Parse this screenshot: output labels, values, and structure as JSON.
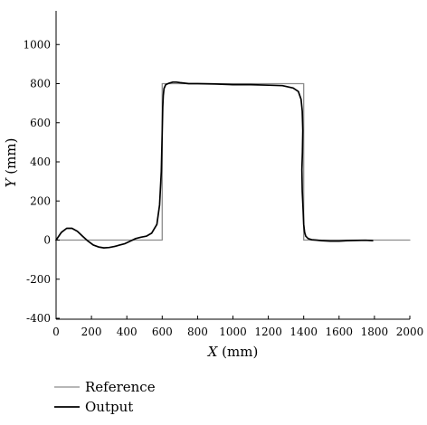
{
  "chart_data": {
    "type": "line",
    "xlabel": "X (mm)",
    "ylabel": "Y (mm)",
    "xlim": [
      0,
      2000
    ],
    "ylim": [
      -400,
      1150
    ],
    "xticks": [
      0,
      200,
      400,
      600,
      800,
      1000,
      1200,
      1400,
      1600,
      1800,
      2000
    ],
    "yticks": [
      -400,
      -200,
      0,
      200,
      400,
      600,
      800,
      1000
    ],
    "grid": false,
    "legend_position": "bottom-left",
    "series": [
      {
        "name": "Reference",
        "color": "#8c8c8c",
        "x": [
          0,
          600,
          600,
          1400,
          1400,
          2000
        ],
        "y": [
          0,
          0,
          800,
          800,
          0,
          0
        ]
      },
      {
        "name": "Output",
        "color": "#000000",
        "x": [
          0,
          30,
          60,
          90,
          120,
          150,
          180,
          210,
          240,
          270,
          300,
          330,
          360,
          390,
          420,
          450,
          480,
          510,
          540,
          570,
          585,
          595,
          600,
          603,
          606,
          610,
          620,
          640,
          660,
          680,
          700,
          750,
          800,
          900,
          1000,
          1100,
          1200,
          1280,
          1340,
          1370,
          1385,
          1392,
          1395,
          1393,
          1390,
          1392,
          1397,
          1400,
          1405,
          1412,
          1425,
          1445,
          1470,
          1500,
          1550,
          1600,
          1650,
          1700,
          1750,
          1790
        ],
        "y": [
          0,
          40,
          60,
          60,
          45,
          20,
          -5,
          -25,
          -35,
          -40,
          -38,
          -33,
          -25,
          -18,
          -5,
          8,
          15,
          20,
          35,
          80,
          180,
          350,
          550,
          680,
          740,
          775,
          795,
          803,
          808,
          808,
          805,
          800,
          800,
          798,
          795,
          795,
          792,
          790,
          778,
          760,
          720,
          660,
          560,
          450,
          360,
          250,
          150,
          80,
          40,
          20,
          8,
          2,
          0,
          -3,
          -5,
          -5,
          -3,
          -2,
          -1,
          -3
        ]
      }
    ]
  }
}
